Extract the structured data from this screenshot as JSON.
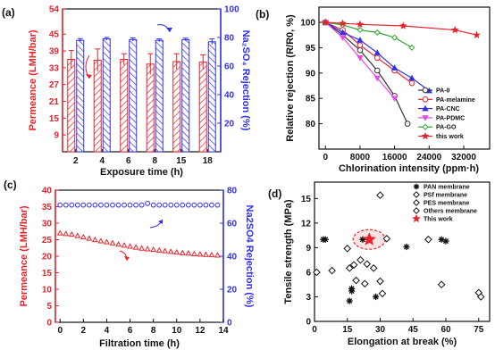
{
  "chart_data": [
    {
      "panel": "(a)",
      "type": "bar",
      "xlabel": "Exposure time (h)",
      "ylabel_left": "Permeance (LMH/bar)",
      "ylabel_right": "Na₂SO₄ Rejection (%)",
      "categories": [
        "2",
        "4",
        "6",
        "8",
        "15",
        "18"
      ],
      "ylim_left": [
        3,
        54
      ],
      "ylim_right": [
        0,
        100
      ],
      "yticks_left": [
        9,
        15,
        21,
        27,
        33,
        39,
        45,
        54
      ],
      "yticks_right": [
        20,
        40,
        60,
        80,
        100
      ],
      "colors": {
        "left": "#e8232a",
        "right": "#2f2ff0"
      },
      "series": [
        {
          "values": [
            36.0,
            35.7,
            36.0,
            34.3,
            35.2,
            35.0
          ],
          "errors": [
            3.2,
            4.0,
            2.0,
            3.7,
            2.8,
            2.6
          ],
          "axis": "left"
        },
        {
          "values": [
            78.0,
            79.0,
            78.5,
            78.0,
            78.5,
            77.0
          ],
          "errors": [
            1.2,
            1.0,
            1.2,
            1.0,
            1.0,
            2.0
          ],
          "axis": "right"
        }
      ]
    },
    {
      "panel": "(b)",
      "type": "line",
      "xlabel": "Chlorination intensity  (ppm·h)",
      "ylabel": "Relative rejection (R/R0, %)",
      "xlim": [
        -1500,
        38000
      ],
      "ylim": [
        75,
        103
      ],
      "xticks": [
        0,
        8000,
        16000,
        24000,
        32000
      ],
      "yticks": [
        80,
        85,
        90,
        95,
        100
      ],
      "legend_position": "bottom-right",
      "series": [
        {
          "name": "PA-0",
          "marker": "circle",
          "color": "#333333",
          "x": [
            0,
            4000,
            8000,
            12000,
            16000,
            19000
          ],
          "y": [
            100,
            97.5,
            94.5,
            90.5,
            85.5,
            80
          ]
        },
        {
          "name": "PA-melamine",
          "marker": "circle",
          "color": "#e8232a",
          "x": [
            0,
            4000,
            8000,
            12000,
            16000,
            20000
          ],
          "y": [
            100,
            98.5,
            95.5,
            93,
            90.5,
            88
          ]
        },
        {
          "name": "PA-CNC",
          "marker": "triangle-up",
          "color": "#2f2ff0",
          "x": [
            0,
            4000,
            8000,
            12000,
            16000,
            20000,
            24000
          ],
          "y": [
            100,
            98,
            96.5,
            94,
            91,
            89,
            86.5
          ]
        },
        {
          "name": "PA-PDMC",
          "marker": "triangle-down",
          "color": "#e54be5",
          "x": [
            0,
            4000,
            8000,
            12000,
            16000
          ],
          "y": [
            100,
            97,
            93,
            89,
            85
          ]
        },
        {
          "name": "PA-GO",
          "marker": "diamond",
          "color": "#34a534",
          "x": [
            0,
            4000,
            8000,
            12000,
            16000,
            20000
          ],
          "y": [
            100,
            99.5,
            98.5,
            98,
            97,
            95
          ]
        },
        {
          "name": "this work",
          "marker": "star",
          "color": "#e8232a",
          "x": [
            0,
            4000,
            8000,
            18000,
            30000,
            35000
          ],
          "y": [
            100,
            99.8,
            99.6,
            99.3,
            98.5,
            97.5
          ]
        }
      ]
    },
    {
      "panel": "(c)",
      "type": "scatter",
      "xlabel": "Filtration time (h)",
      "ylabel_left": "Permeance (LMH/bar)",
      "ylabel_right": "Na2SO4 Rejection (%)",
      "xlim": [
        -0.4,
        14
      ],
      "ylim_left": [
        0,
        40
      ],
      "ylim_right": [
        0,
        80
      ],
      "xticks": [
        0,
        2,
        4,
        6,
        8,
        10,
        12,
        14
      ],
      "yticks_left": [
        0,
        5,
        10,
        15,
        20,
        25,
        30,
        35,
        40
      ],
      "yticks_right": [
        0,
        20,
        40,
        60,
        80
      ],
      "colors": {
        "left": "#e8232a",
        "right": "#2f2ff0"
      },
      "series": [
        {
          "axis": "left",
          "marker": "triangle",
          "x": [
            0,
            0.5,
            1,
            1.5,
            2,
            2.5,
            3,
            3.5,
            4,
            4.5,
            5,
            5.5,
            6,
            6.5,
            7,
            7.5,
            8,
            8.5,
            9,
            9.5,
            10,
            10.5,
            11,
            11.5,
            12,
            12.5,
            13,
            13.5
          ],
          "y": [
            27,
            26.8,
            26.6,
            26.2,
            25.8,
            25.4,
            25,
            24.6,
            24.3,
            24,
            23.6,
            23.3,
            23,
            22.7,
            22.4,
            22.2,
            22,
            21.8,
            21.6,
            21.4,
            21.2,
            21,
            20.9,
            20.7,
            20.6,
            20.5,
            20.4,
            20.3
          ]
        },
        {
          "axis": "right",
          "marker": "circle",
          "x": [
            0,
            0.5,
            1,
            1.5,
            2,
            2.5,
            3,
            3.5,
            4,
            4.5,
            5,
            5.5,
            6,
            6.5,
            7,
            7.5,
            8,
            8.5,
            9,
            9.5,
            10,
            10.5,
            11,
            11.5,
            12,
            12.5,
            13,
            13.5
          ],
          "y": [
            71,
            71,
            71,
            71,
            71,
            71,
            71,
            71,
            71,
            71,
            71,
            71,
            71,
            71,
            71,
            72,
            71,
            71,
            71,
            71,
            71,
            71,
            71,
            71,
            71,
            71,
            71,
            71
          ]
        }
      ]
    },
    {
      "panel": "(d)",
      "type": "scatter",
      "xlabel": "Elongation at break (%)",
      "ylabel": "Tensile strength (MPa)",
      "xlim": [
        0,
        80
      ],
      "ylim": [
        0,
        17
      ],
      "xticks": [
        0,
        15,
        30,
        45,
        60,
        75
      ],
      "yticks": [
        0,
        3,
        6,
        9,
        12,
        15
      ],
      "legend_position": "top-right",
      "series": [
        {
          "name": "PAN membrane",
          "marker": "asterisk",
          "color": "#111111",
          "x": [
            4,
            5,
            16,
            17,
            17,
            22,
            28,
            42,
            58,
            60
          ],
          "y": [
            10,
            10,
            2.5,
            3.7,
            4.0,
            10,
            3.0,
            9.1,
            10,
            9.8
          ]
        },
        {
          "name": "PSf membrane",
          "marker": "diamond",
          "color": "#111111",
          "x": [
            30,
            33,
            31
          ],
          "y": [
            15.4,
            10.1,
            3.4
          ]
        },
        {
          "name": "PES membrane",
          "marker": "diamond",
          "color": "#111111",
          "x": [
            8,
            15,
            19,
            21,
            30,
            52,
            58
          ],
          "y": [
            6.2,
            8.9,
            5.0,
            7.5,
            4.9,
            10,
            4.5
          ]
        },
        {
          "name": "Others membrane",
          "marker": "diamond",
          "color": "#111111",
          "x": [
            1,
            16,
            18,
            23,
            24,
            27,
            75,
            76
          ],
          "y": [
            6.0,
            6.5,
            6.9,
            4.6,
            7.0,
            6.5,
            3.5,
            3.0
          ]
        },
        {
          "name": "This work",
          "marker": "star",
          "color": "#e8232a",
          "x": [
            25
          ],
          "y": [
            10
          ]
        }
      ]
    }
  ]
}
